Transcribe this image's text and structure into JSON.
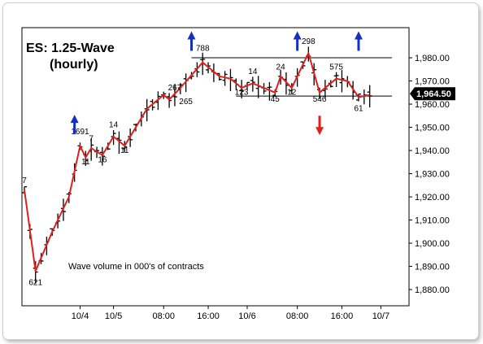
{
  "chart_data": {
    "type": "ohlc_bar",
    "title_line1": "ES:  1.25-Wave",
    "title_line2": "(hourly)",
    "annotation": "Wave volume in 000's of contracts",
    "current_price_label": "1,964.50",
    "y_axis": {
      "ylim": [
        1873,
        1993
      ],
      "ticks": [
        1880,
        1890,
        1900,
        1910,
        1920,
        1930,
        1940,
        1950,
        1960,
        1970,
        1980
      ],
      "tick_labels": [
        "1,880.00",
        "1,890.00",
        "1,900.00",
        "1,910.00",
        "1,920.00",
        "1,930.00",
        "1,940.00",
        "1,950.00",
        "1,960.00",
        "1,970.00",
        "1,980.00"
      ]
    },
    "x_axis": {
      "bar_count": 65,
      "tick_labels": [
        {
          "label": "10/4",
          "bar": 10
        },
        {
          "label": "10/5",
          "bar": 16
        },
        {
          "label": "08:00",
          "bar": 25
        },
        {
          "label": "16:00",
          "bar": 33
        },
        {
          "label": "10/6",
          "bar": 40
        },
        {
          "label": "08:00",
          "bar": 49
        },
        {
          "label": "16:00",
          "bar": 57
        },
        {
          "label": "10/7",
          "bar": 64
        }
      ]
    },
    "wave_line": [
      {
        "bar": 0,
        "price": 1923
      },
      {
        "bar": 2,
        "price": 1888
      },
      {
        "bar": 5,
        "price": 1905
      },
      {
        "bar": 8,
        "price": 1920
      },
      {
        "bar": 10,
        "price": 1942
      },
      {
        "bar": 11,
        "price": 1937
      },
      {
        "bar": 12,
        "price": 1941
      },
      {
        "bar": 14,
        "price": 1938
      },
      {
        "bar": 16,
        "price": 1946
      },
      {
        "bar": 18,
        "price": 1942
      },
      {
        "bar": 22,
        "price": 1958
      },
      {
        "bar": 25,
        "price": 1964
      },
      {
        "bar": 26,
        "price": 1962
      },
      {
        "bar": 28,
        "price": 1967
      },
      {
        "bar": 32,
        "price": 1978
      },
      {
        "bar": 35,
        "price": 1972
      },
      {
        "bar": 37,
        "price": 1971
      },
      {
        "bar": 39,
        "price": 1967
      },
      {
        "bar": 41,
        "price": 1969
      },
      {
        "bar": 45,
        "price": 1965
      },
      {
        "bar": 46,
        "price": 1972
      },
      {
        "bar": 48,
        "price": 1967
      },
      {
        "bar": 51,
        "price": 1982
      },
      {
        "bar": 53,
        "price": 1965
      },
      {
        "bar": 56,
        "price": 1971
      },
      {
        "bar": 58,
        "price": 1970
      },
      {
        "bar": 60,
        "price": 1963
      },
      {
        "bar": 62,
        "price": 1964
      }
    ],
    "wave_volumes": [
      {
        "label": "7",
        "bar": 0,
        "price": 1926
      },
      {
        "label": "621",
        "bar": 2,
        "price": 1882
      },
      {
        "label": "1691",
        "bar": 10,
        "price": 1947
      },
      {
        "label": "11",
        "bar": 11,
        "price": 1934
      },
      {
        "label": "7",
        "bar": 12,
        "price": 1944
      },
      {
        "label": "16",
        "bar": 14,
        "price": 1935
      },
      {
        "label": "14",
        "bar": 16,
        "price": 1950
      },
      {
        "label": "11",
        "bar": 18,
        "price": 1939
      },
      {
        "label": "267",
        "bar": 27,
        "price": 1966
      },
      {
        "label": "265",
        "bar": 29,
        "price": 1960
      },
      {
        "label": "788",
        "bar": 32,
        "price": 1983
      },
      {
        "label": "123",
        "bar": 39,
        "price": 1964
      },
      {
        "label": "14",
        "bar": 41,
        "price": 1973
      },
      {
        "label": "45",
        "bar": 45,
        "price": 1961
      },
      {
        "label": "24",
        "bar": 46,
        "price": 1975
      },
      {
        "label": "12",
        "bar": 48,
        "price": 1964
      },
      {
        "label": "298",
        "bar": 51,
        "price": 1986
      },
      {
        "label": "546",
        "bar": 53,
        "price": 1961
      },
      {
        "label": "575",
        "bar": 56,
        "price": 1975
      },
      {
        "label": "61",
        "bar": 60,
        "price": 1957
      }
    ],
    "horizontal_lines": [
      {
        "price": 1980,
        "from_bar": 30,
        "to_bar": 66
      },
      {
        "price": 1963.5,
        "from_bar": 38,
        "to_bar": 66
      }
    ],
    "arrows": [
      {
        "direction": "up",
        "color": "#1530c0",
        "bar": 9,
        "price": 1947
      },
      {
        "direction": "up",
        "color": "#1530c0",
        "bar": 30,
        "price": 1983
      },
      {
        "direction": "up",
        "color": "#1530c0",
        "bar": 49,
        "price": 1983
      },
      {
        "direction": "down",
        "color": "#e02020",
        "bar": 53,
        "price": 1955
      },
      {
        "direction": "up",
        "color": "#1530c0",
        "bar": 60,
        "price": 1983
      }
    ],
    "colors": {
      "bars": "#000000",
      "wave_line": "#e02020",
      "support_resistance": "#000000",
      "price_box": "#000000"
    }
  }
}
